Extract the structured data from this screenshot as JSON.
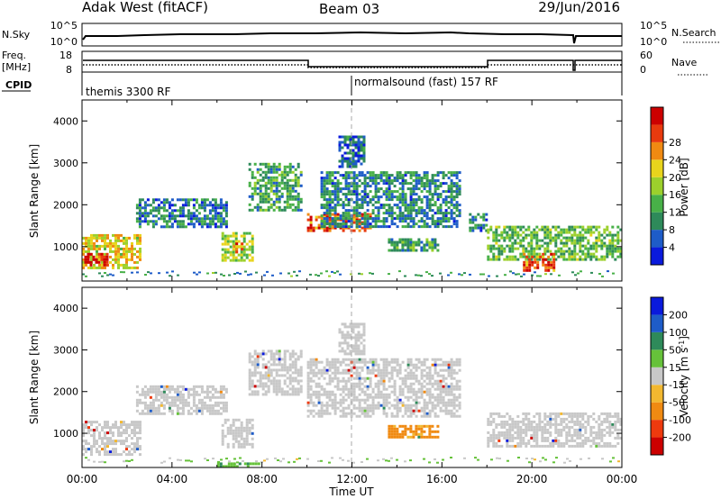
{
  "header": {
    "title": "Adak West (fitACF)",
    "beam": "Beam 03",
    "date": "29/Jun/2016"
  },
  "nsky_panel": {
    "left_label": "N.Sky",
    "left_ticks": [
      "10^5",
      "10^0"
    ],
    "right_ticks": [
      "10^5",
      "10^0"
    ],
    "right_label": "N.Search"
  },
  "freq_panel": {
    "left_label_1": "Freq.",
    "left_label_2": "[MHz]",
    "left_ticks": [
      "18",
      "8"
    ],
    "right_ticks": [
      "60",
      "0"
    ],
    "right_label": "Nave"
  },
  "cpid_panel": {
    "label": "CPID",
    "segments": [
      {
        "label": "themis 3300 RF"
      },
      {
        "label": "normalsound (fast) 157 RF"
      }
    ]
  },
  "colors": {
    "power": [
      "#0a1adc",
      "#1e5cc8",
      "#2e8a5a",
      "#48b048",
      "#9cd02c",
      "#e8d41c",
      "#f08a12",
      "#e83a0e",
      "#cc0000"
    ],
    "velocity": [
      "#cc0000",
      "#ee3a0e",
      "#f08a12",
      "#f2b830",
      "#c8c8c8",
      "#66c23a",
      "#2e8a5a",
      "#1e5cc8",
      "#0a1adc"
    ]
  },
  "chart_data": [
    {
      "type": "heatmap",
      "name": "Power",
      "xlabel": "",
      "ylabel": "Slant Range [km]",
      "xlim": [
        "00:00",
        "24:00"
      ],
      "ylim": [
        180,
        4500
      ],
      "yticks": [
        "1000",
        "2000",
        "3000",
        "4000"
      ],
      "colorbar": {
        "label": "Power [dB]",
        "ticks": [
          "4",
          "8",
          "12",
          "16",
          "20",
          "24",
          "28"
        ],
        "range": [
          0,
          30
        ]
      },
      "regions": [
        {
          "t0": 0.0,
          "t1": 2.6,
          "r0": 480,
          "r1": 1300,
          "level": 18
        },
        {
          "t0": 0.1,
          "t1": 1.1,
          "r0": 560,
          "r1": 850,
          "level": 28
        },
        {
          "t0": 2.4,
          "t1": 6.4,
          "r0": 1500,
          "r1": 2150,
          "level": 7
        },
        {
          "t0": 6.2,
          "t1": 7.6,
          "r0": 700,
          "r1": 1350,
          "level": 15
        },
        {
          "t0": 6.7,
          "t1": 7.1,
          "r0": 850,
          "r1": 1100,
          "level": 22
        },
        {
          "t0": 7.4,
          "t1": 9.8,
          "r0": 1900,
          "r1": 3000,
          "level": 10
        },
        {
          "t0": 10.0,
          "t1": 12.8,
          "r0": 1400,
          "r1": 1800,
          "level": 24
        },
        {
          "t0": 10.6,
          "t1": 16.8,
          "r0": 1500,
          "r1": 2800,
          "level": 8
        },
        {
          "t0": 11.4,
          "t1": 12.6,
          "r0": 2900,
          "r1": 3650,
          "level": 6
        },
        {
          "t0": 13.6,
          "t1": 15.8,
          "r0": 900,
          "r1": 1200,
          "level": 10
        },
        {
          "t0": 17.2,
          "t1": 18.0,
          "r0": 1400,
          "r1": 1800,
          "level": 8
        },
        {
          "t0": 18.0,
          "t1": 24.0,
          "r0": 700,
          "r1": 1500,
          "level": 12
        },
        {
          "t0": 19.6,
          "t1": 21.0,
          "r0": 400,
          "r1": 850,
          "level": 24
        }
      ]
    },
    {
      "type": "heatmap",
      "name": "Velocity",
      "xlabel": "Time UT",
      "ylabel": "Slant Range [km]",
      "xlim": [
        "00:00",
        "24:00"
      ],
      "xticks": [
        "00:00",
        "04:00",
        "08:00",
        "12:00",
        "16:00",
        "20:00",
        "00:00"
      ],
      "ylim": [
        180,
        4500
      ],
      "yticks": [
        "1000",
        "2000",
        "3000",
        "4000"
      ],
      "colorbar": {
        "label": "Velocity [m s-1]",
        "label_main": "Velocity [m s",
        "label_sup": "-1",
        "label_end": "]",
        "ticks": [
          "-200",
          "-100",
          "-50",
          "-15",
          "15",
          "50",
          "100",
          "200"
        ],
        "range": [
          -250,
          250
        ]
      },
      "regions": [
        {
          "t0": 0.0,
          "t1": 2.6,
          "r0": 480,
          "r1": 1300,
          "level": 0
        },
        {
          "t0": 2.4,
          "t1": 6.4,
          "r0": 1500,
          "r1": 2150,
          "level": 0
        },
        {
          "t0": 6.2,
          "t1": 7.6,
          "r0": 700,
          "r1": 1350,
          "level": 0
        },
        {
          "t0": 7.4,
          "t1": 9.8,
          "r0": 1900,
          "r1": 3000,
          "level": 0
        },
        {
          "t0": 10.0,
          "t1": 16.8,
          "r0": 1400,
          "r1": 2800,
          "level": 0
        },
        {
          "t0": 11.4,
          "t1": 12.6,
          "r0": 2900,
          "r1": 3650,
          "level": 0
        },
        {
          "t0": 13.6,
          "t1": 15.8,
          "r0": 900,
          "r1": 1200,
          "level": -60
        },
        {
          "t0": 18.0,
          "t1": 24.0,
          "r0": 700,
          "r1": 1500,
          "level": 0
        },
        {
          "t0": 6.0,
          "t1": 8.0,
          "r0": 200,
          "r1": 300,
          "level": 40
        }
      ]
    }
  ]
}
